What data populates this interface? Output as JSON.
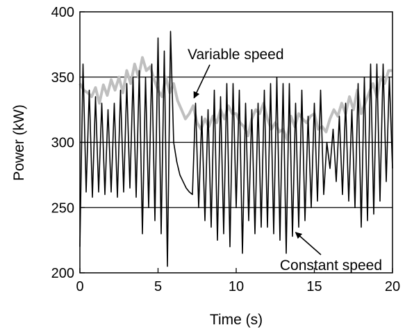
{
  "chart_data": {
    "type": "line",
    "title": "",
    "xlabel": "Time (s)",
    "ylabel": "Power (kW)",
    "xlim": [
      0,
      20
    ],
    "ylim": [
      200,
      400
    ],
    "x_ticks": [
      0,
      5,
      10,
      15,
      20
    ],
    "y_ticks": [
      200,
      250,
      300,
      350,
      400
    ],
    "x_tick_labels": [
      "0",
      "5",
      "10",
      "15",
      "20"
    ],
    "y_tick_labels": [
      "200",
      "250",
      "300",
      "350",
      "400"
    ],
    "gridlines_y": [
      250,
      300,
      350
    ],
    "grid": "horizontal",
    "legend": "none",
    "annotations": [
      {
        "text": "Variable speed",
        "series": "Variable speed",
        "arrow_to": [
          7.3,
          334
        ]
      },
      {
        "text": "Constant speed",
        "series": "Constant speed",
        "arrow_to": [
          13.8,
          231
        ]
      }
    ],
    "series": [
      {
        "name": "Variable speed",
        "color": "#bfbfbf",
        "x": [
          0,
          0.25,
          0.5,
          0.75,
          1,
          1.25,
          1.5,
          1.75,
          2,
          2.25,
          2.5,
          2.75,
          3,
          3.25,
          3.5,
          3.75,
          4,
          4.25,
          4.5,
          4.75,
          5,
          5.25,
          5.5,
          5.75,
          6,
          6.25,
          6.5,
          6.75,
          7,
          7.25,
          7.5,
          7.75,
          8,
          8.25,
          8.5,
          8.75,
          9,
          9.25,
          9.5,
          9.75,
          10,
          10.25,
          10.5,
          10.75,
          11,
          11.25,
          11.5,
          11.75,
          12,
          12.25,
          12.5,
          12.75,
          13,
          13.25,
          13.5,
          13.75,
          14,
          14.25,
          14.5,
          14.75,
          15,
          15.25,
          15.5,
          15.75,
          16,
          16.25,
          16.5,
          16.75,
          17,
          17.25,
          17.5,
          17.75,
          18,
          18.25,
          18.5,
          18.75,
          19,
          19.25,
          19.5,
          19.75,
          20
        ],
        "values": [
          345,
          340,
          338,
          335,
          342,
          330,
          344,
          336,
          348,
          340,
          350,
          338,
          355,
          345,
          360,
          350,
          365,
          355,
          358,
          348,
          340,
          335,
          350,
          338,
          345,
          332,
          325,
          318,
          322,
          328,
          315,
          310,
          318,
          312,
          320,
          315,
          325,
          318,
          328,
          322,
          322,
          315,
          312,
          305,
          318,
          325,
          322,
          330,
          318,
          310,
          315,
          308,
          310,
          302,
          320,
          312,
          322,
          318,
          315,
          320,
          322,
          310,
          312,
          308,
          318,
          325,
          320,
          330,
          322,
          335,
          325,
          340,
          322,
          330,
          338,
          345,
          335,
          350,
          345,
          355,
          355
        ]
      },
      {
        "name": "Constant speed",
        "color": "#000000",
        "x": [
          0,
          0.2,
          0.4,
          0.6,
          0.8,
          1,
          1.2,
          1.4,
          1.6,
          1.8,
          2,
          2.2,
          2.4,
          2.6,
          2.8,
          3,
          3.2,
          3.4,
          3.6,
          3.8,
          4,
          4.2,
          4.4,
          4.6,
          4.8,
          5,
          5.2,
          5.4,
          5.6,
          5.8,
          6,
          6.2,
          6.4,
          6.6,
          6.8,
          7,
          7.2,
          7.4,
          7.6,
          7.8,
          8,
          8.2,
          8.4,
          8.6,
          8.8,
          9,
          9.2,
          9.4,
          9.6,
          9.8,
          10,
          10.2,
          10.4,
          10.6,
          10.8,
          11,
          11.2,
          11.4,
          11.6,
          11.8,
          12,
          12.2,
          12.4,
          12.6,
          12.8,
          13,
          13.2,
          13.4,
          13.6,
          13.8,
          14,
          14.2,
          14.4,
          14.6,
          14.8,
          15,
          15.2,
          15.4,
          15.6,
          15.8,
          16,
          16.2,
          16.4,
          16.6,
          16.8,
          17,
          17.2,
          17.4,
          17.6,
          17.8,
          18,
          18.2,
          18.4,
          18.6,
          18.8,
          19,
          19.2,
          19.4,
          19.6,
          19.8,
          20
        ],
        "values": [
          220,
          360,
          262,
          340,
          258,
          335,
          262,
          330,
          260,
          325,
          262,
          330,
          258,
          340,
          262,
          345,
          265,
          350,
          258,
          355,
          230,
          350,
          250,
          360,
          240,
          380,
          230,
          370,
          205,
          385,
          300,
          285,
          275,
          270,
          265,
          262,
          260,
          330,
          250,
          320,
          240,
          325,
          235,
          340,
          225,
          335,
          230,
          345,
          220,
          345,
          250,
          340,
          215,
          330,
          240,
          325,
          230,
          330,
          235,
          340,
          235,
          345,
          230,
          350,
          225,
          345,
          215,
          345,
          228,
          330,
          235,
          340,
          240,
          320,
          250,
          330,
          255,
          340,
          260,
          300,
          280,
          310,
          270,
          320,
          260,
          330,
          255,
          325,
          250,
          345,
          235,
          350,
          240,
          360,
          245,
          360,
          255,
          360,
          270,
          350,
          280
        ]
      }
    ]
  }
}
